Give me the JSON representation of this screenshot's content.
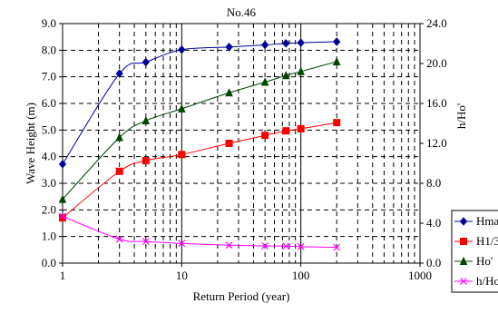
{
  "chart_data": {
    "type": "line",
    "title": "No.46",
    "xlabel": "Return Period (year)",
    "ylabel": "Wave Height (m)",
    "y2label": "h/Ho'",
    "x_scale": "log",
    "xlim": [
      1,
      1000
    ],
    "ylim": [
      0,
      9
    ],
    "y2lim": [
      0,
      24
    ],
    "x_ticks": [
      "1",
      "10",
      "100",
      "1000"
    ],
    "y_ticks": [
      "0.0",
      "1.0",
      "2.0",
      "3.0",
      "4.0",
      "5.0",
      "6.0",
      "7.0",
      "8.0",
      "9.0"
    ],
    "y2_ticks": [
      "0.0",
      "4.0",
      "8.0",
      "12.0",
      "16.0",
      "20.0",
      "24.0"
    ],
    "grid": true,
    "legend_position": "right",
    "series": [
      {
        "name": "Hmax",
        "axis": "left",
        "color": "#000099",
        "marker": "diamond",
        "x": [
          1,
          3,
          5,
          10,
          25,
          50,
          75,
          100,
          200
        ],
        "values": [
          3.72,
          7.12,
          7.55,
          8.02,
          8.12,
          8.2,
          8.26,
          8.28,
          8.32
        ]
      },
      {
        "name": "H1/3",
        "axis": "left",
        "color": "#ff0000",
        "marker": "square",
        "x": [
          1,
          3,
          5,
          10,
          25,
          50,
          75,
          100,
          200
        ],
        "values": [
          1.7,
          3.45,
          3.85,
          4.08,
          4.5,
          4.8,
          4.97,
          5.05,
          5.28
        ]
      },
      {
        "name": "Ho'",
        "axis": "left",
        "color": "#004400",
        "marker": "triangle",
        "x": [
          1,
          3,
          5,
          10,
          25,
          50,
          75,
          100,
          200
        ],
        "values": [
          2.4,
          4.72,
          5.35,
          5.8,
          6.4,
          6.8,
          7.05,
          7.2,
          7.57
        ]
      },
      {
        "name": "h/Ho'",
        "axis": "right",
        "color": "#ff00ff",
        "marker": "x",
        "x": [
          1,
          3,
          5,
          10,
          25,
          50,
          75,
          100,
          200
        ],
        "values": [
          4.7,
          2.4,
          2.17,
          1.97,
          1.8,
          1.73,
          1.7,
          1.65,
          1.58
        ]
      }
    ],
    "legend_labels": [
      "Hmax",
      "H1/3",
      "Ho'",
      "h/Ho'"
    ]
  }
}
